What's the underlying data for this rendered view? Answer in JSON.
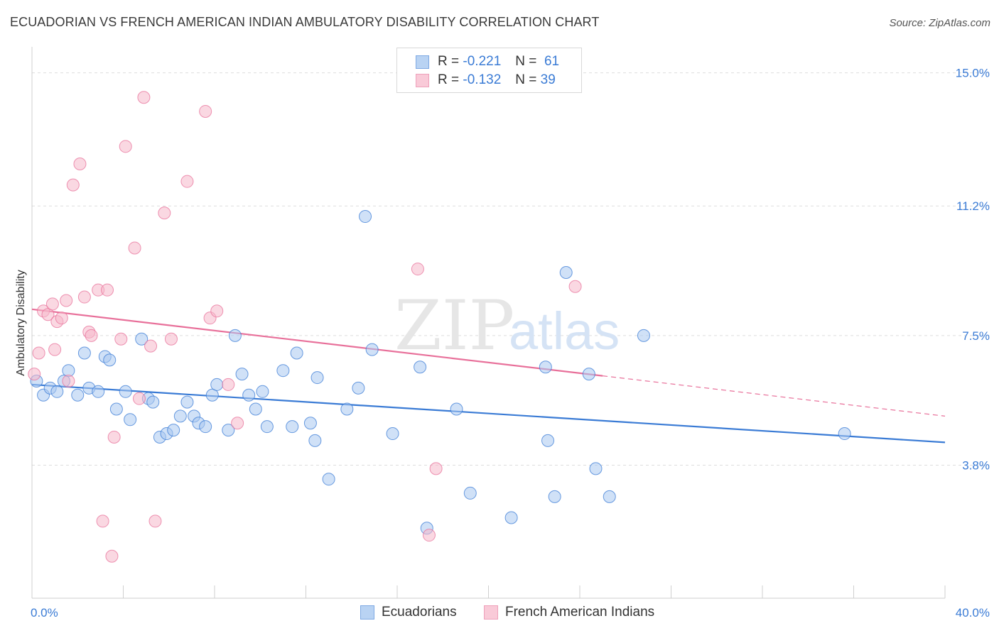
{
  "title": "ECUADORIAN VS FRENCH AMERICAN INDIAN AMBULATORY DISABILITY CORRELATION CHART",
  "source": "Source: ZipAtlas.com",
  "watermark": {
    "zip": "ZIP",
    "atlas": "atlas"
  },
  "colors": {
    "blue": "#3a7bd5",
    "blue_fill": "#a9c8f0",
    "pink": "#e8709a",
    "pink_fill": "#f5b8cb",
    "tick_label": "#3a7bd5",
    "grid": "#dddddd"
  },
  "legend": {
    "rows": [
      {
        "r_label": "R =",
        "r_value": "-0.221",
        "n_label": "N =",
        "n_value": "61"
      },
      {
        "r_label": "R =",
        "r_value": "-0.132",
        "n_label": "N =",
        "n_value": "39"
      }
    ]
  },
  "bottom_legend": [
    "Ecuadorians",
    "French American Indians"
  ],
  "chart_data": {
    "type": "scatter",
    "xlabel": "",
    "ylabel": "Ambulatory Disability",
    "xlim": [
      0,
      40
    ],
    "ylim": [
      0,
      15.5
    ],
    "x_tick_labels": [
      "0.0%",
      "40.0%"
    ],
    "y_ticks": [
      3.8,
      7.5,
      11.2,
      15.0
    ],
    "y_tick_labels": [
      "3.8%",
      "7.5%",
      "11.2%",
      "15.0%"
    ],
    "grid": "horizontal dashed",
    "legend_position": "top-center",
    "series": [
      {
        "name": "Ecuadorians",
        "color": "#3a7bd5",
        "points": [
          [
            0.2,
            6.2
          ],
          [
            0.5,
            5.8
          ],
          [
            0.8,
            6.0
          ],
          [
            1.1,
            5.9
          ],
          [
            1.4,
            6.2
          ],
          [
            1.6,
            6.5
          ],
          [
            2.0,
            5.8
          ],
          [
            2.3,
            7.0
          ],
          [
            2.5,
            6.0
          ],
          [
            2.9,
            5.9
          ],
          [
            3.2,
            6.9
          ],
          [
            3.4,
            6.8
          ],
          [
            3.7,
            5.4
          ],
          [
            4.1,
            5.9
          ],
          [
            4.3,
            5.1
          ],
          [
            4.8,
            7.4
          ],
          [
            5.1,
            5.7
          ],
          [
            5.3,
            5.6
          ],
          [
            5.6,
            4.6
          ],
          [
            5.9,
            4.7
          ],
          [
            6.2,
            4.8
          ],
          [
            6.5,
            5.2
          ],
          [
            6.8,
            5.6
          ],
          [
            7.1,
            5.2
          ],
          [
            7.3,
            5.0
          ],
          [
            7.6,
            4.9
          ],
          [
            7.9,
            5.8
          ],
          [
            8.1,
            6.1
          ],
          [
            8.6,
            4.8
          ],
          [
            8.9,
            7.5
          ],
          [
            9.2,
            6.4
          ],
          [
            9.5,
            5.8
          ],
          [
            9.8,
            5.4
          ],
          [
            10.1,
            5.9
          ],
          [
            10.3,
            4.9
          ],
          [
            11.0,
            6.5
          ],
          [
            11.4,
            4.9
          ],
          [
            11.6,
            7.0
          ],
          [
            12.2,
            5.0
          ],
          [
            12.4,
            4.5
          ],
          [
            12.5,
            6.3
          ],
          [
            13.0,
            3.4
          ],
          [
            13.8,
            5.4
          ],
          [
            14.3,
            6.0
          ],
          [
            14.6,
            10.9
          ],
          [
            14.9,
            7.1
          ],
          [
            15.8,
            4.7
          ],
          [
            17.0,
            6.6
          ],
          [
            17.3,
            2.0
          ],
          [
            18.6,
            5.4
          ],
          [
            19.2,
            3.0
          ],
          [
            21.0,
            2.3
          ],
          [
            22.5,
            6.6
          ],
          [
            22.6,
            4.5
          ],
          [
            22.9,
            2.9
          ],
          [
            23.4,
            9.3
          ],
          [
            24.4,
            6.4
          ],
          [
            24.7,
            3.7
          ],
          [
            25.3,
            2.9
          ],
          [
            26.8,
            7.5
          ],
          [
            35.6,
            4.7
          ]
        ]
      },
      {
        "name": "French American Indians",
        "color": "#e8709a",
        "points": [
          [
            0.1,
            6.4
          ],
          [
            0.3,
            7.0
          ],
          [
            0.5,
            8.2
          ],
          [
            0.7,
            8.1
          ],
          [
            0.9,
            8.4
          ],
          [
            1.0,
            7.1
          ],
          [
            1.1,
            7.9
          ],
          [
            1.3,
            8.0
          ],
          [
            1.5,
            8.5
          ],
          [
            1.6,
            6.2
          ],
          [
            1.8,
            11.8
          ],
          [
            2.1,
            12.4
          ],
          [
            2.3,
            8.6
          ],
          [
            2.5,
            7.6
          ],
          [
            2.6,
            7.5
          ],
          [
            2.9,
            8.8
          ],
          [
            3.1,
            2.2
          ],
          [
            3.3,
            8.8
          ],
          [
            3.5,
            1.2
          ],
          [
            3.6,
            4.6
          ],
          [
            3.9,
            7.4
          ],
          [
            4.1,
            12.9
          ],
          [
            4.5,
            10.0
          ],
          [
            4.7,
            5.7
          ],
          [
            4.9,
            14.3
          ],
          [
            5.2,
            7.2
          ],
          [
            5.4,
            2.2
          ],
          [
            5.8,
            11.0
          ],
          [
            6.1,
            7.4
          ],
          [
            6.8,
            11.9
          ],
          [
            7.6,
            13.9
          ],
          [
            7.8,
            8.0
          ],
          [
            8.1,
            8.2
          ],
          [
            8.6,
            6.1
          ],
          [
            9.0,
            5.0
          ],
          [
            16.9,
            9.4
          ],
          [
            17.4,
            1.8
          ],
          [
            17.7,
            3.7
          ],
          [
            23.8,
            8.9
          ]
        ]
      }
    ],
    "trend_lines": [
      {
        "series": "Ecuadorians",
        "x": [
          0,
          40
        ],
        "y": [
          6.1,
          4.45
        ],
        "style": "solid"
      },
      {
        "series": "French American Indians",
        "x": [
          0,
          25
        ],
        "y": [
          8.25,
          6.35
        ],
        "style": "solid"
      },
      {
        "series": "French American Indians",
        "x": [
          25,
          40
        ],
        "y": [
          6.35,
          5.2
        ],
        "style": "dashed"
      }
    ]
  }
}
